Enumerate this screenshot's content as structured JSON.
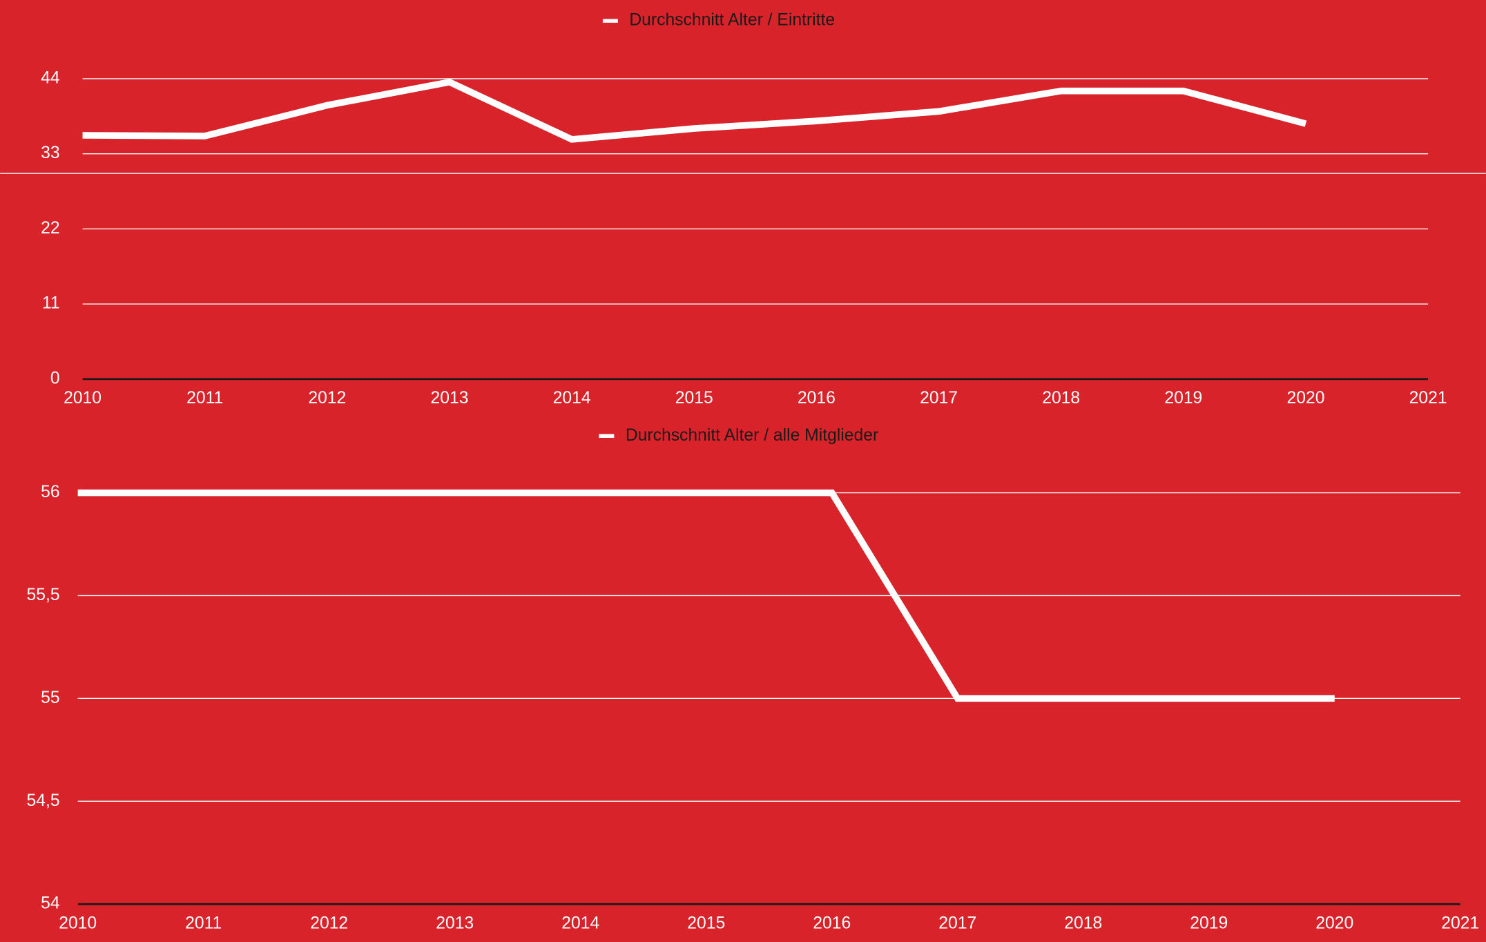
{
  "chart_data": [
    {
      "type": "line",
      "x": [
        2010,
        2011,
        2012,
        2013,
        2014,
        2015,
        2016,
        2017,
        2018,
        2019,
        2020
      ],
      "series": [
        {
          "name": "Durchschnitt Alter / Eintritte",
          "color": "#ffffff",
          "values": [
            35.7,
            35.6,
            40.1,
            43.5,
            35.1,
            36.7,
            37.8,
            39.2,
            42.2,
            42.2,
            37.4
          ]
        }
      ],
      "xlim": [
        2010,
        2021
      ],
      "xticks": [
        2010,
        2011,
        2012,
        2013,
        2014,
        2015,
        2016,
        2017,
        2018,
        2019,
        2020,
        2021
      ],
      "ylim": [
        0,
        44
      ],
      "yticks": [
        0,
        11,
        22,
        33,
        44
      ],
      "grid": true
    },
    {
      "type": "line",
      "x": [
        2010,
        2011,
        2012,
        2013,
        2014,
        2015,
        2016,
        2017,
        2018,
        2019,
        2020
      ],
      "series": [
        {
          "name": "Durchschnitt Alter / alle Mitglieder",
          "color": "#ffffff",
          "values": [
            56,
            56,
            56,
            56,
            56,
            56,
            56,
            55,
            55,
            55,
            55
          ]
        }
      ],
      "xlim": [
        2010,
        2021
      ],
      "xticks": [
        2010,
        2011,
        2012,
        2013,
        2014,
        2015,
        2016,
        2017,
        2018,
        2019,
        2020,
        2021
      ],
      "ylim": [
        54,
        56
      ],
      "yticks": [
        54,
        {
          "value": 54.5,
          "label": "54,5"
        },
        55,
        {
          "value": 55.5,
          "label": "55,5"
        },
        56
      ],
      "grid": true
    }
  ]
}
